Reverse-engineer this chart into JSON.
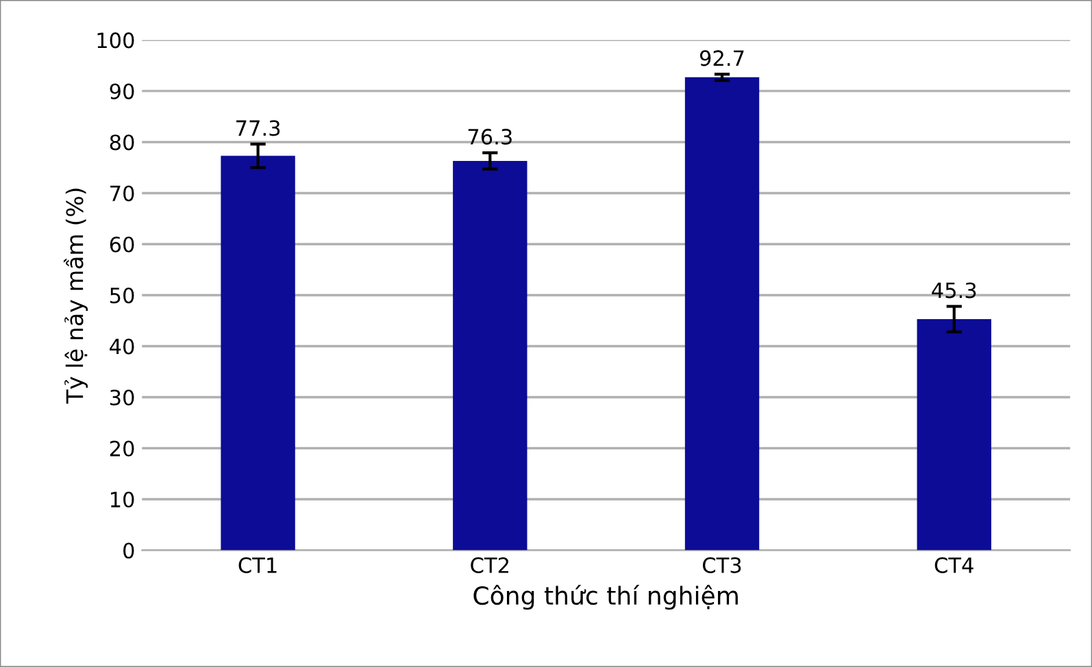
{
  "chart_data": {
    "type": "bar",
    "xlabel": "Công thức thí nghiệm",
    "ylabel": "Tỷ lệ nảy mầm (%)",
    "categories": [
      "CT1",
      "CT2",
      "CT3",
      "CT4"
    ],
    "values": [
      77.3,
      76.3,
      92.7,
      45.3
    ],
    "errors": [
      2.3,
      1.6,
      0.6,
      2.5
    ],
    "color": "#0c0c96",
    "ylim": [
      0,
      100
    ],
    "yticks": [
      0,
      10,
      20,
      30,
      40,
      50,
      60,
      70,
      80,
      90,
      100
    ],
    "grid": "y",
    "data_labels": true
  }
}
